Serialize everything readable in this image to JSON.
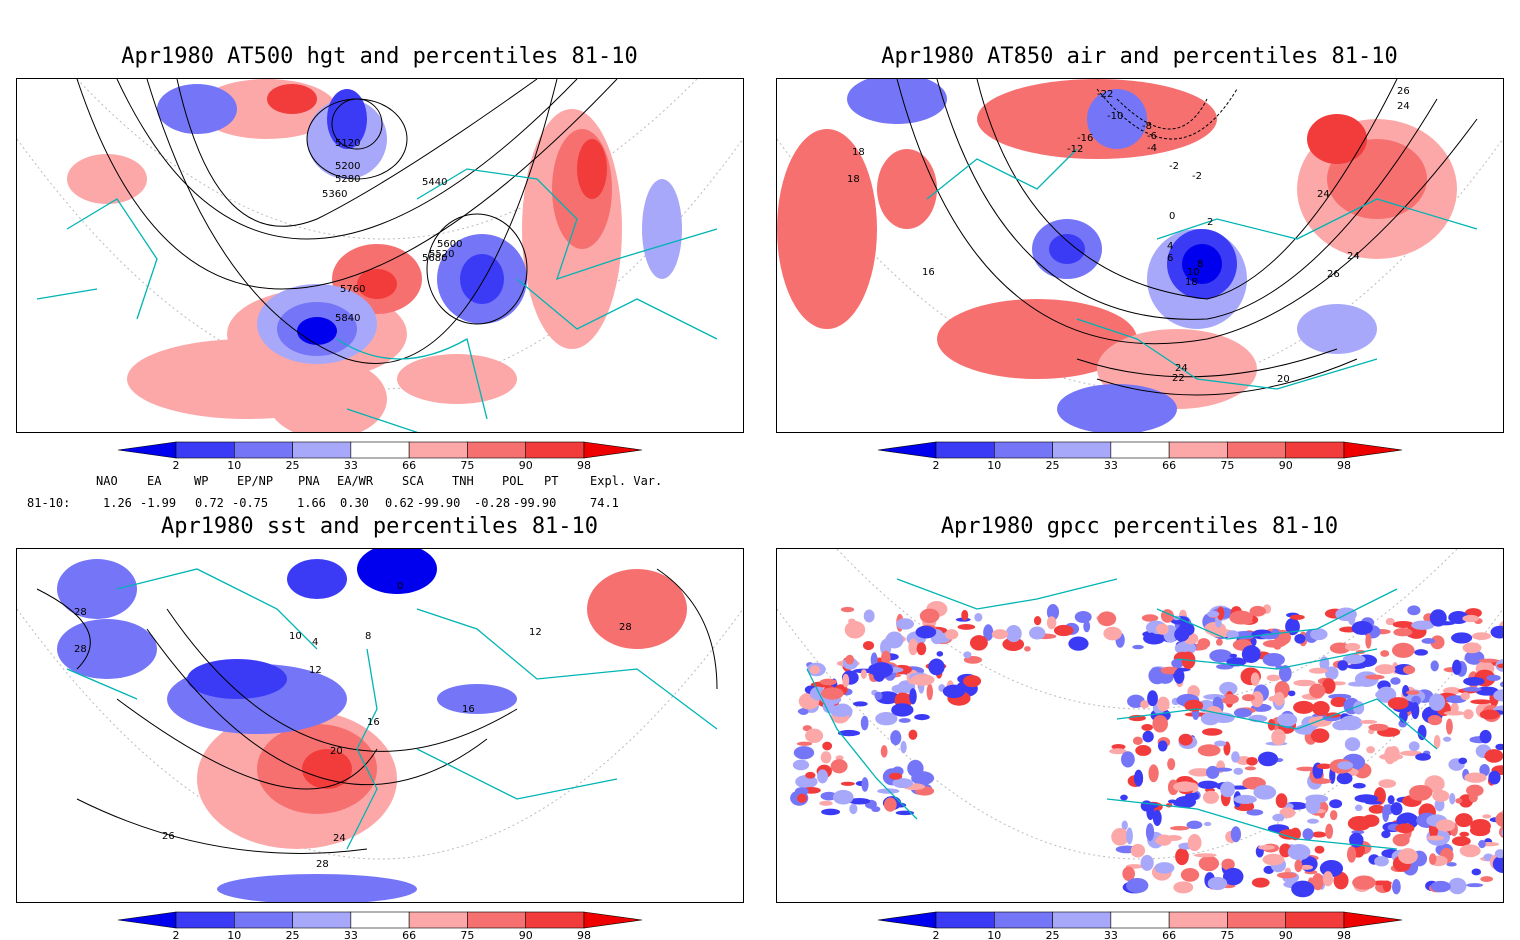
{
  "panels": [
    {
      "id": "p1",
      "title": "Apr1980 AT500 hgt and percentiles 81-10",
      "contour_labels": [
        "5120",
        "5200",
        "5280",
        "5360",
        "5440",
        "5520",
        "5600",
        "5680",
        "5760",
        "5840"
      ]
    },
    {
      "id": "p2",
      "title": "Apr1980 AT850 air and percentiles 81-10",
      "contour_labels": [
        "-22",
        "-10",
        "-8",
        "-6",
        "-4",
        "-2",
        "-16",
        "-12",
        "-2",
        "0",
        "2",
        "4",
        "6",
        "8",
        "10",
        "16",
        "18",
        "18",
        "18",
        "24",
        "24",
        "24",
        "26",
        "26",
        "20",
        "22",
        "24"
      ]
    },
    {
      "id": "p3",
      "title": "Apr1980 sst and percentiles 81-10",
      "contour_labels": [
        "28",
        "28",
        "0",
        "10",
        "4",
        "8",
        "12",
        "16",
        "16",
        "20",
        "24",
        "26",
        "28",
        "12",
        "28"
      ]
    },
    {
      "id": "p4",
      "title": "Apr1980 gpcc percentiles 81-10",
      "contour_labels": []
    }
  ],
  "colorbar": {
    "labels": [
      "2",
      "10",
      "25",
      "33",
      "66",
      "75",
      "90",
      "98"
    ],
    "colors": [
      "#0000ee",
      "#3b3bf5",
      "#7575f7",
      "#a8a8fb",
      "#ffffff",
      "#fca8a8",
      "#f77070",
      "#f23c3c",
      "#ee0000"
    ]
  },
  "indices": {
    "headers": [
      "NAO",
      "EA",
      "WP",
      "EP/NP",
      "PNA",
      "EA/WR",
      "SCA",
      "TNH",
      "POL",
      "PT",
      "Expl. Var."
    ],
    "row_label": "81-10:",
    "values": [
      "1.26",
      "-1.99",
      "0.72",
      "-0.75",
      "1.66",
      "0.30",
      "0.62",
      "-99.90",
      "-0.28",
      "-99.90",
      "74.1"
    ]
  },
  "colors": {
    "coastline": "#00b4b4",
    "contour": "#000000",
    "high": "#ee2020",
    "low": "#2020ee"
  }
}
